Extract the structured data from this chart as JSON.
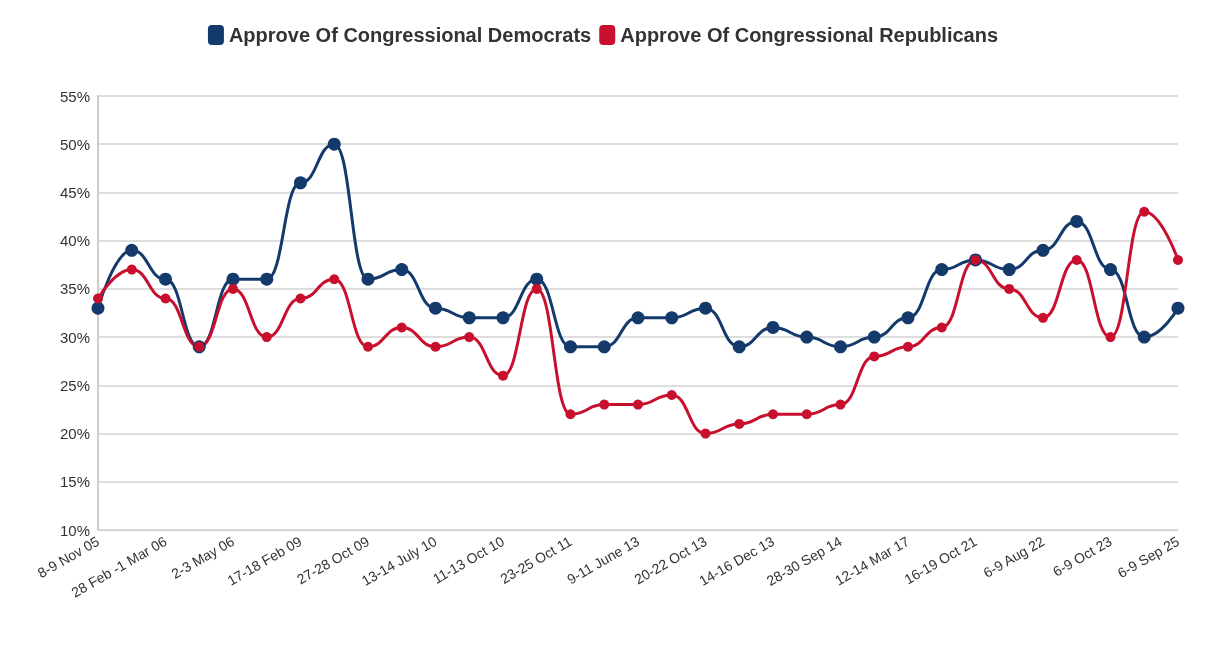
{
  "chart_data": {
    "type": "line",
    "categories": [
      "8-9 Nov 05",
      null,
      "28 Feb -1 Mar 06",
      null,
      "2-3 May 06",
      null,
      "17-18 Feb 09",
      null,
      "27-28 Oct 09",
      null,
      "13-14 July 10",
      null,
      "11-13 Oct 10",
      null,
      "23-25 Oct 11",
      null,
      "9-11 June 13",
      null,
      "20-22 Oct 13",
      null,
      "14-16 Dec 13",
      null,
      "28-30 Sep 14",
      null,
      "12-14 Mar 17",
      null,
      "16-19 Oct 21",
      null,
      "6-9 Aug 22",
      null,
      "6-9 Oct 23",
      null,
      "6-9 Sep 25"
    ],
    "series": [
      {
        "name": "Approve Of Congressional Democrats",
        "color": "#133a6b",
        "values": [
          33,
          39,
          36,
          29,
          36,
          36,
          46,
          50,
          36,
          37,
          33,
          32,
          32,
          36,
          29,
          29,
          32,
          32,
          33,
          29,
          31,
          30,
          29,
          30,
          32,
          37,
          38,
          37,
          39,
          42,
          37,
          30,
          33
        ]
      },
      {
        "name": "Approve Of Congressional Republicans",
        "color": "#c8102e",
        "values": [
          34,
          37,
          34,
          29,
          35,
          30,
          34,
          36,
          29,
          31,
          29,
          30,
          26,
          35,
          22,
          23,
          23,
          24,
          20,
          21,
          22,
          22,
          23,
          28,
          29,
          31,
          38,
          35,
          32,
          38,
          30,
          43,
          38
        ]
      }
    ],
    "ylim": [
      10,
      55
    ],
    "yticks": [
      {
        "value": 10,
        "label": "10%"
      },
      {
        "value": 15,
        "label": "15%"
      },
      {
        "value": 20,
        "label": "20%"
      },
      {
        "value": 25,
        "label": "25%"
      },
      {
        "value": 30,
        "label": "30%"
      },
      {
        "value": 35,
        "label": "35%"
      },
      {
        "value": 40,
        "label": "40%"
      },
      {
        "value": 45,
        "label": "45%"
      },
      {
        "value": 50,
        "label": "50%"
      },
      {
        "value": 55,
        "label": "55%"
      }
    ],
    "grid": "y",
    "legend": "top",
    "marker": "circle",
    "line_style": "solid"
  }
}
